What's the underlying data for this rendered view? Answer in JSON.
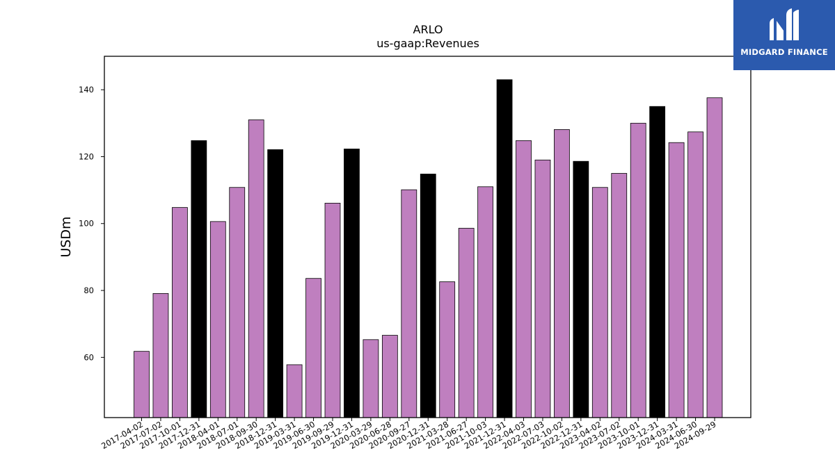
{
  "chart_data": {
    "type": "bar",
    "title": "ARLO",
    "subtitle": "us-gaap:Revenues",
    "xlabel": "",
    "ylabel": "USDm",
    "ylim": [
      42,
      150
    ],
    "yticks": [
      60,
      80,
      100,
      120,
      140
    ],
    "grid": false,
    "colors": {
      "quarter": "#bf7fbf",
      "year_end": "#000000",
      "edge": "#000000"
    },
    "categories": [
      "2017-04-02",
      "2017-07-02",
      "2017-10-01",
      "2017-12-31",
      "2018-04-01",
      "2018-07-01",
      "2018-09-30",
      "2018-12-31",
      "2019-03-31",
      "2019-06-30",
      "2019-09-29",
      "2019-12-31",
      "2020-03-29",
      "2020-06-28",
      "2020-09-27",
      "2020-12-31",
      "2021-03-28",
      "2021-06-27",
      "2021-10-03",
      "2021-12-31",
      "2022-04-03",
      "2022-07-03",
      "2022-10-02",
      "2022-12-31",
      "2023-04-02",
      "2023-07-02",
      "2023-10-01",
      "2023-12-31",
      "2024-03-31",
      "2024-06-30",
      "2024-09-29"
    ],
    "values": [
      61.8,
      79.1,
      104.8,
      124.8,
      100.6,
      110.8,
      131.0,
      122.1,
      57.8,
      83.6,
      106.1,
      122.3,
      65.3,
      66.6,
      110.1,
      114.8,
      82.6,
      98.6,
      111.0,
      143.0,
      124.8,
      119.0,
      128.1,
      118.6,
      110.8,
      115.0,
      130.0,
      135.0,
      124.2,
      127.4,
      137.6
    ],
    "highlight": [
      false,
      false,
      false,
      true,
      false,
      false,
      false,
      true,
      false,
      false,
      false,
      true,
      false,
      false,
      false,
      true,
      false,
      false,
      false,
      true,
      false,
      false,
      false,
      true,
      false,
      false,
      false,
      true,
      false,
      false,
      false
    ]
  },
  "logo": {
    "text": "MIDGARD FINANCE",
    "icon": "midgard-logo-icon"
  }
}
